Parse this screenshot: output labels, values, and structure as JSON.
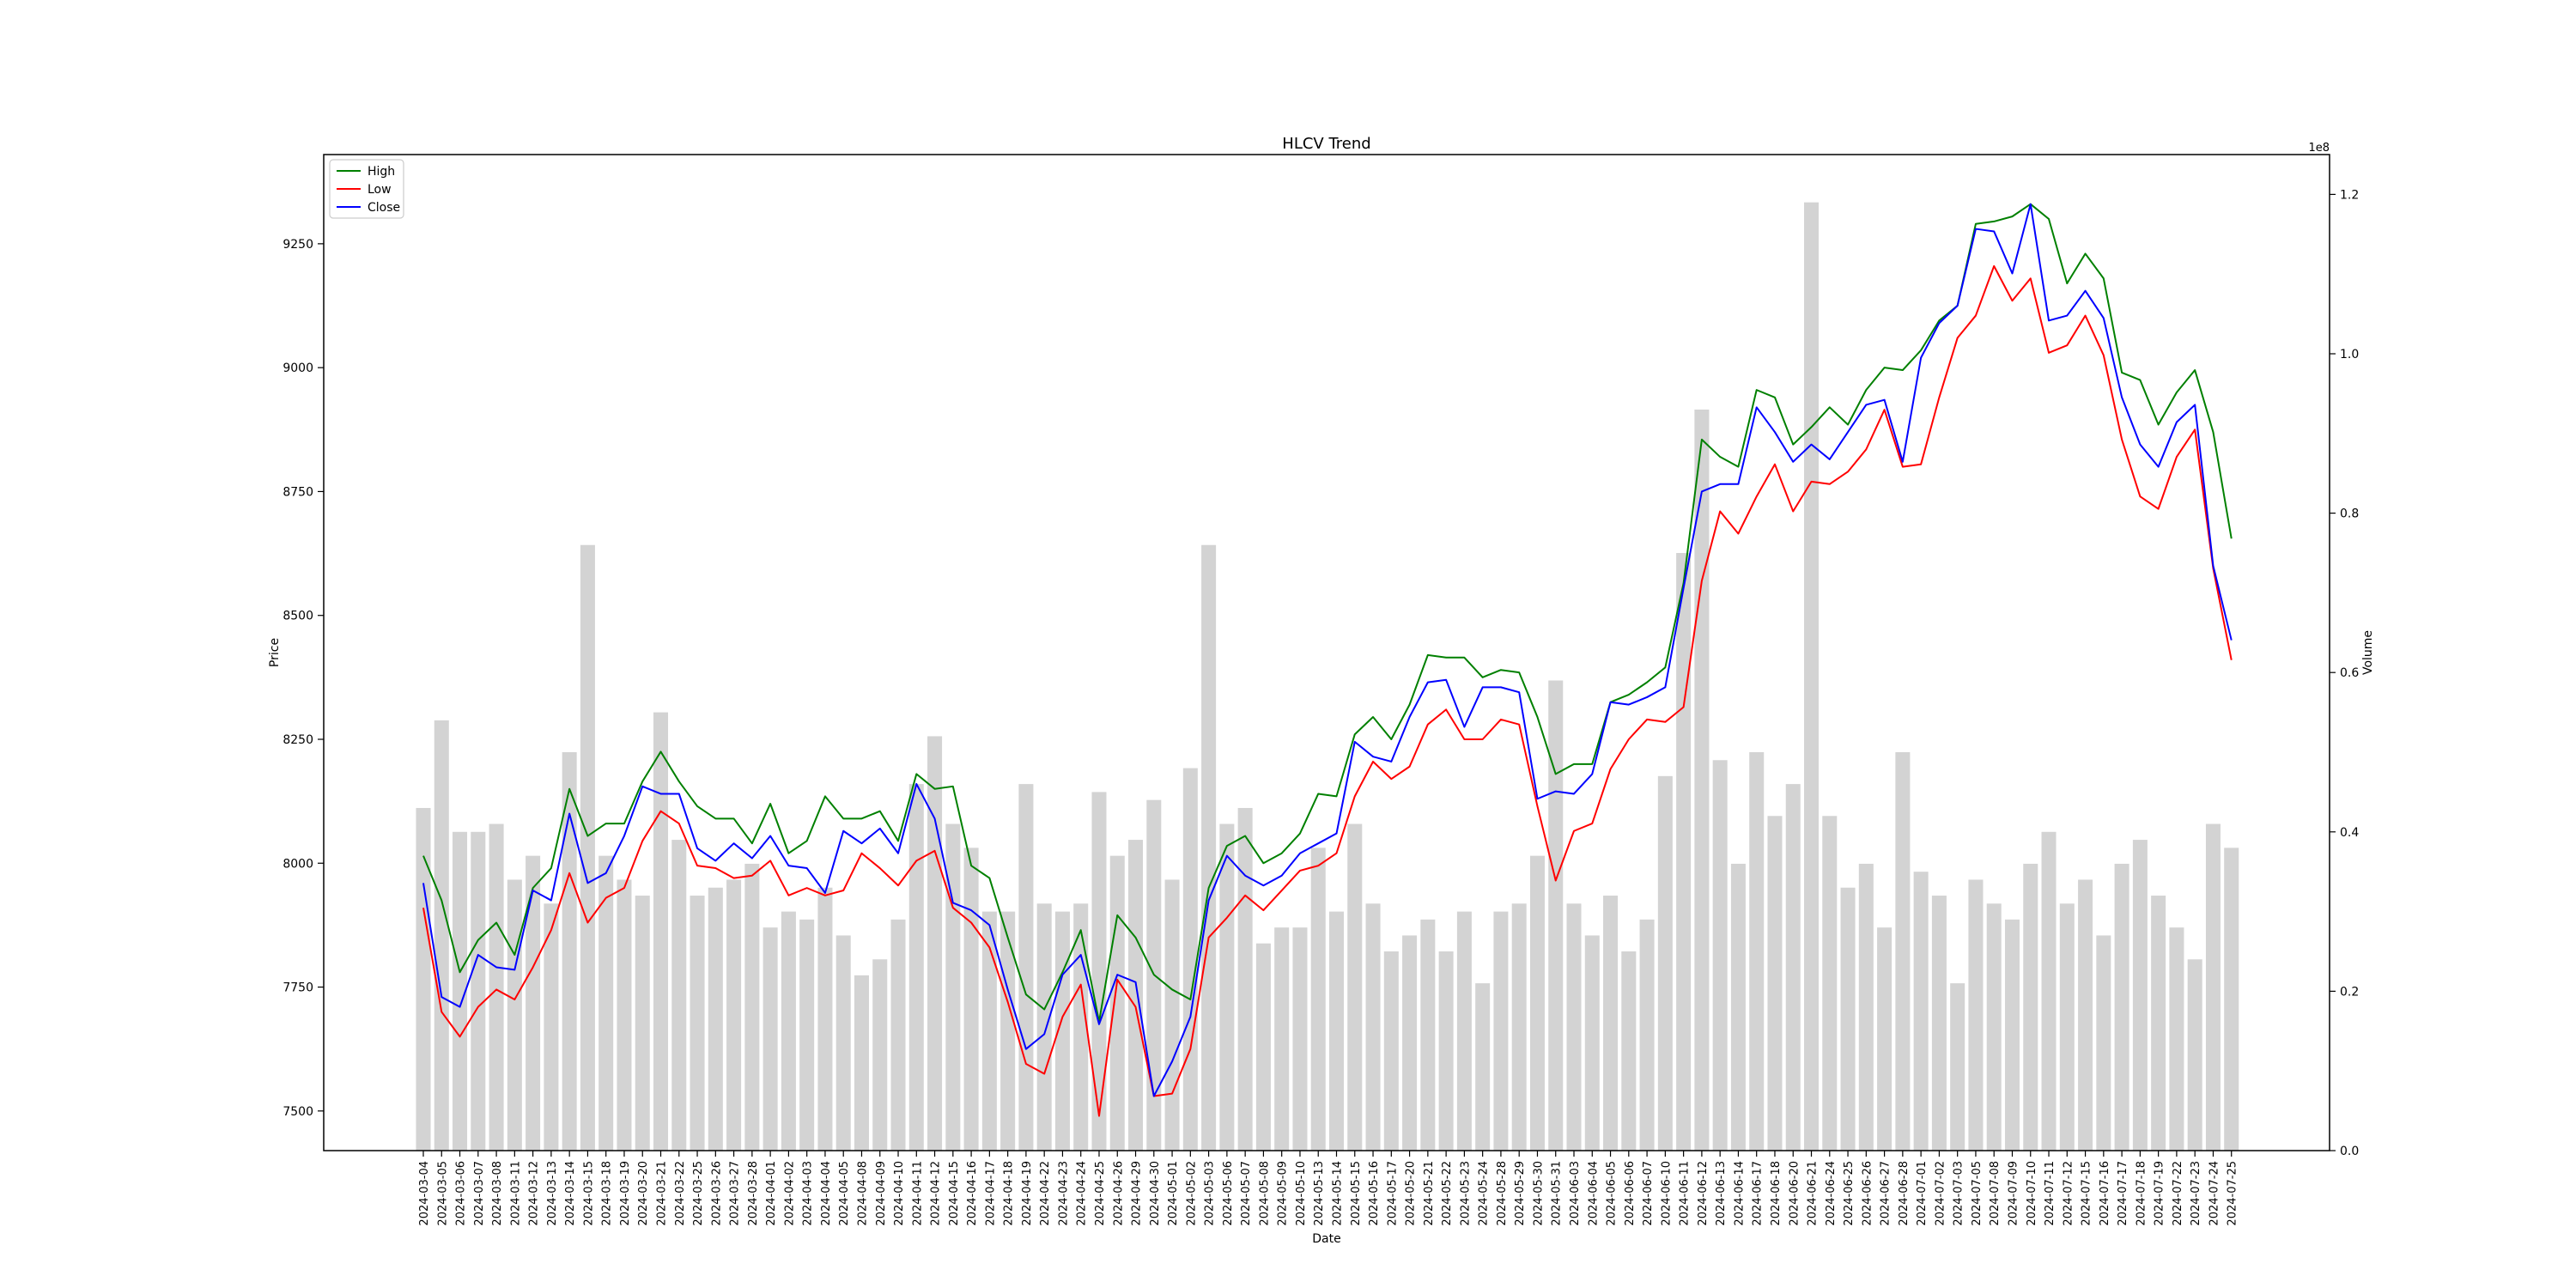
{
  "chart_data": {
    "type": "line",
    "title": "HLCV Trend",
    "xlabel": "Date",
    "ylabel": "Price",
    "y2label": "Volume",
    "y2_offset_label": "1e8",
    "ylim": [
      7420,
      9430
    ],
    "y2lim": [
      0,
      1.25
    ],
    "yticks": [
      7500,
      7750,
      8000,
      8250,
      8500,
      8750,
      9000,
      9250
    ],
    "y2ticks": [
      0.0,
      0.2,
      0.4,
      0.6,
      0.8,
      1.0,
      1.2
    ],
    "legend_position": "top-left",
    "grid": false,
    "x": [
      "2024-03-04",
      "2024-03-05",
      "2024-03-06",
      "2024-03-07",
      "2024-03-08",
      "2024-03-11",
      "2024-03-12",
      "2024-03-13",
      "2024-03-14",
      "2024-03-15",
      "2024-03-18",
      "2024-03-19",
      "2024-03-20",
      "2024-03-21",
      "2024-03-22",
      "2024-03-25",
      "2024-03-26",
      "2024-03-27",
      "2024-03-28",
      "2024-04-01",
      "2024-04-02",
      "2024-04-03",
      "2024-04-04",
      "2024-04-05",
      "2024-04-08",
      "2024-04-09",
      "2024-04-10",
      "2024-04-11",
      "2024-04-12",
      "2024-04-15",
      "2024-04-16",
      "2024-04-17",
      "2024-04-18",
      "2024-04-19",
      "2024-04-22",
      "2024-04-23",
      "2024-04-24",
      "2024-04-25",
      "2024-04-26",
      "2024-04-29",
      "2024-04-30",
      "2024-05-01",
      "2024-05-02",
      "2024-05-03",
      "2024-05-06",
      "2024-05-07",
      "2024-05-08",
      "2024-05-09",
      "2024-05-10",
      "2024-05-13",
      "2024-05-14",
      "2024-05-15",
      "2024-05-16",
      "2024-05-17",
      "2024-05-20",
      "2024-05-21",
      "2024-05-22",
      "2024-05-23",
      "2024-05-24",
      "2024-05-28",
      "2024-05-29",
      "2024-05-30",
      "2024-05-31",
      "2024-06-03",
      "2024-06-04",
      "2024-06-05",
      "2024-06-06",
      "2024-06-07",
      "2024-06-10",
      "2024-06-11",
      "2024-06-12",
      "2024-06-13",
      "2024-06-14",
      "2024-06-17",
      "2024-06-18",
      "2024-06-20",
      "2024-06-21",
      "2024-06-24",
      "2024-06-25",
      "2024-06-26",
      "2024-06-27",
      "2024-06-28",
      "2024-07-01",
      "2024-07-02",
      "2024-07-03",
      "2024-07-05",
      "2024-07-08",
      "2024-07-09",
      "2024-07-10",
      "2024-07-11",
      "2024-07-12",
      "2024-07-15",
      "2024-07-16",
      "2024-07-17",
      "2024-07-18",
      "2024-07-19",
      "2024-07-22",
      "2024-07-23",
      "2024-07-24",
      "2024-07-25"
    ],
    "series": [
      {
        "name": "High",
        "color": "#008000",
        "values": [
          8015,
          7925,
          7780,
          7845,
          7880,
          7815,
          7950,
          7990,
          8150,
          8055,
          8080,
          8080,
          8165,
          8225,
          8165,
          8115,
          8090,
          8090,
          8040,
          8120,
          8020,
          8045,
          8135,
          8090,
          8090,
          8105,
          8045,
          8180,
          8150,
          8155,
          7995,
          7970,
          7850,
          7735,
          7705,
          7780,
          7865,
          7680,
          7895,
          7850,
          7775,
          7745,
          7725,
          7950,
          8035,
          8055,
          8000,
          8020,
          8060,
          8140,
          8135,
          8260,
          8295,
          8250,
          8320,
          8420,
          8415,
          8415,
          8375,
          8390,
          8385,
          8295,
          8180,
          8200,
          8200,
          8325,
          8340,
          8365,
          8395,
          8565,
          8855,
          8820,
          8800,
          8955,
          8940,
          8845,
          8880,
          8920,
          8885,
          8955,
          9000,
          8995,
          9035,
          9095,
          9125,
          9290,
          9295,
          9305,
          9330,
          9300,
          9170,
          9230,
          9180,
          8990,
          8975,
          8885,
          8950,
          8995,
          8870,
          8655
        ]
      },
      {
        "name": "Low",
        "color": "#ff0000",
        "values": [
          7910,
          7700,
          7650,
          7710,
          7745,
          7725,
          7790,
          7865,
          7980,
          7880,
          7930,
          7950,
          8045,
          8105,
          8080,
          7995,
          7990,
          7970,
          7975,
          8005,
          7935,
          7950,
          7935,
          7945,
          8020,
          7990,
          7955,
          8005,
          8025,
          7910,
          7880,
          7830,
          7720,
          7595,
          7575,
          7690,
          7755,
          7490,
          7765,
          7710,
          7530,
          7535,
          7625,
          7850,
          7890,
          7935,
          7905,
          7945,
          7985,
          7995,
          8020,
          8135,
          8205,
          8170,
          8195,
          8280,
          8310,
          8250,
          8250,
          8290,
          8280,
          8115,
          7965,
          8065,
          8080,
          8190,
          8250,
          8290,
          8285,
          8315,
          8570,
          8710,
          8665,
          8740,
          8805,
          8710,
          8770,
          8765,
          8790,
          8835,
          8915,
          8800,
          8805,
          8940,
          9060,
          9105,
          9205,
          9135,
          9180,
          9030,
          9045,
          9105,
          9025,
          8855,
          8740,
          8715,
          8820,
          8875,
          8595,
          8410
        ]
      },
      {
        "name": "Close",
        "color": "#0000ff",
        "values": [
          7960,
          7730,
          7710,
          7815,
          7790,
          7785,
          7945,
          7925,
          8100,
          7960,
          7980,
          8055,
          8155,
          8140,
          8140,
          8030,
          8005,
          8040,
          8010,
          8055,
          7995,
          7990,
          7940,
          8065,
          8040,
          8070,
          8020,
          8160,
          8090,
          7920,
          7905,
          7875,
          7745,
          7625,
          7655,
          7775,
          7815,
          7675,
          7775,
          7760,
          7530,
          7600,
          7690,
          7925,
          8015,
          7975,
          7955,
          7975,
          8020,
          8040,
          8060,
          8245,
          8215,
          8205,
          8295,
          8365,
          8370,
          8275,
          8355,
          8355,
          8345,
          8130,
          8145,
          8140,
          8180,
          8325,
          8320,
          8335,
          8355,
          8555,
          8750,
          8765,
          8765,
          8920,
          8870,
          8810,
          8845,
          8815,
          8870,
          8925,
          8935,
          8810,
          9020,
          9090,
          9125,
          9280,
          9275,
          9190,
          9330,
          9095,
          9105,
          9155,
          9100,
          8940,
          8845,
          8800,
          8890,
          8925,
          8600,
          8450
        ]
      }
    ],
    "volume": {
      "name": "Volume",
      "color": "#d3d3d3",
      "values": [
        0.43,
        0.54,
        0.4,
        0.4,
        0.41,
        0.34,
        0.37,
        0.31,
        0.5,
        0.76,
        0.37,
        0.34,
        0.32,
        0.55,
        0.39,
        0.32,
        0.33,
        0.34,
        0.36,
        0.28,
        0.3,
        0.29,
        0.33,
        0.27,
        0.22,
        0.24,
        0.29,
        0.46,
        0.52,
        0.41,
        0.38,
        0.3,
        0.3,
        0.46,
        0.31,
        0.3,
        0.31,
        0.45,
        0.37,
        0.39,
        0.44,
        0.34,
        0.48,
        0.76,
        0.41,
        0.43,
        0.26,
        0.28,
        0.28,
        0.38,
        0.3,
        0.41,
        0.31,
        0.25,
        0.27,
        0.29,
        0.25,
        0.3,
        0.21,
        0.3,
        0.31,
        0.37,
        0.59,
        0.31,
        0.27,
        0.32,
        0.25,
        0.29,
        0.47,
        0.75,
        0.93,
        0.49,
        0.36,
        0.5,
        0.42,
        0.46,
        1.19,
        0.42,
        0.33,
        0.36,
        0.28,
        0.5,
        0.35,
        0.32,
        0.21,
        0.34,
        0.31,
        0.29,
        0.36,
        0.4,
        0.31,
        0.34,
        0.27,
        0.36,
        0.39,
        0.32,
        0.28,
        0.24,
        0.41,
        0.38
      ]
    }
  }
}
